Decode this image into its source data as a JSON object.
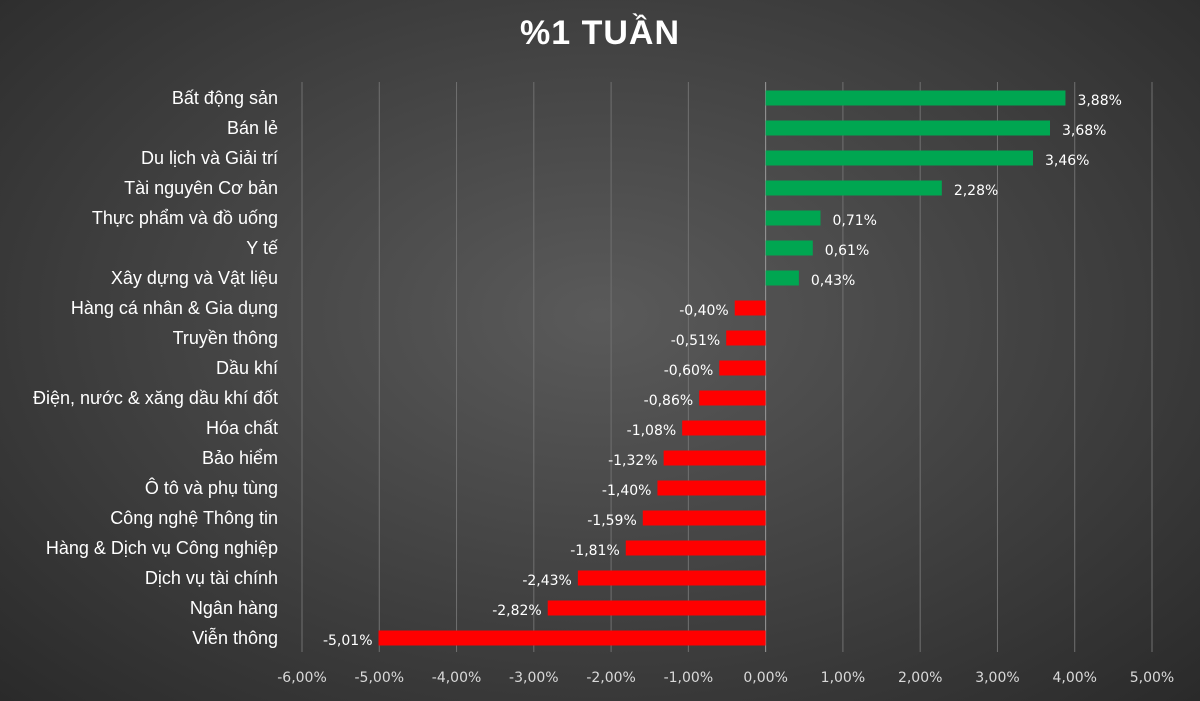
{
  "chart_data": {
    "type": "bar",
    "orientation": "horizontal",
    "title": "%1 TUẦN",
    "categories": [
      "Bất động sản",
      "Bán lẻ",
      "Du lịch và Giải trí",
      "Tài nguyên Cơ bản",
      "Thực phẩm và đồ uống",
      "Y tế",
      "Xây dựng và Vật liệu",
      "Hàng cá nhân & Gia dụng",
      "Truyền thông",
      "Dầu khí",
      "Điện, nước & xăng dầu khí đốt",
      "Hóa chất",
      "Bảo hiểm",
      "Ô tô và phụ tùng",
      "Công nghệ Thông tin",
      "Hàng & Dịch vụ Công nghiệp",
      "Dịch vụ tài chính",
      "Ngân hàng",
      "Viễn thông"
    ],
    "values": [
      3.88,
      3.68,
      3.46,
      2.28,
      0.71,
      0.61,
      0.43,
      -0.4,
      -0.51,
      -0.6,
      -0.86,
      -1.08,
      -1.32,
      -1.4,
      -1.59,
      -1.81,
      -2.43,
      -2.82,
      -5.01
    ],
    "data_labels": [
      "3,88%",
      "3,68%",
      "3,46%",
      "2,28%",
      "0,71%",
      "0,61%",
      "0,43%",
      "-0,40%",
      "-0,51%",
      "-0,60%",
      "-0,86%",
      "-1,08%",
      "-1,32%",
      "-1,40%",
      "-1,59%",
      "-1,81%",
      "-2,43%",
      "-2,82%",
      "-5,01%"
    ],
    "xlim": [
      -6,
      5
    ],
    "x_ticks": [
      -6,
      -5,
      -4,
      -3,
      -2,
      -1,
      0,
      1,
      2,
      3,
      4,
      5
    ],
    "x_tick_labels": [
      "-6,00%",
      "-5,00%",
      "-4,00%",
      "-3,00%",
      "-2,00%",
      "-1,00%",
      "0,00%",
      "1,00%",
      "2,00%",
      "3,00%",
      "4,00%",
      "5,00%"
    ],
    "grid": "vertical",
    "colors": {
      "positive": "#00a651",
      "negative": "#ff0000",
      "grid": "#707070",
      "text": "#ffffff"
    }
  }
}
